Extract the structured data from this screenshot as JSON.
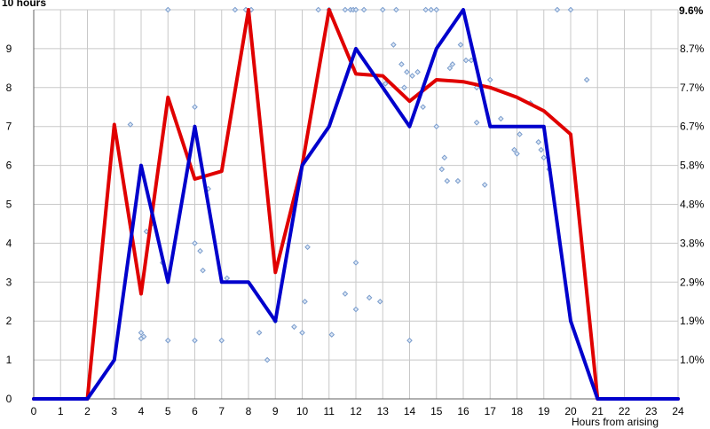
{
  "chart_data": {
    "type": "line",
    "left_axis_title": "10 hours",
    "right_axis_title": "9.6%",
    "xlabel": "Hours from arising",
    "xlim": [
      0,
      24
    ],
    "ylim": [
      0,
      10
    ],
    "grid": true,
    "x_ticks": [
      "0",
      "1",
      "2",
      "3",
      "4",
      "5",
      "6",
      "7",
      "8",
      "9",
      "10",
      "11",
      "12",
      "13",
      "14",
      "15",
      "16",
      "17",
      "18",
      "19",
      "20",
      "21",
      "22",
      "23",
      "24"
    ],
    "y_ticks": [
      "0",
      "1",
      "2",
      "3",
      "4",
      "5",
      "6",
      "7",
      "8",
      "9"
    ],
    "right_ticks": [
      {
        "y": 1,
        "label": "1.0%"
      },
      {
        "y": 2,
        "label": "1.9%"
      },
      {
        "y": 3,
        "label": "2.9%"
      },
      {
        "y": 4,
        "label": "3.8%"
      },
      {
        "y": 5,
        "label": "4.8%"
      },
      {
        "y": 6,
        "label": "5.8%"
      },
      {
        "y": 7,
        "label": "6.7%"
      },
      {
        "y": 8,
        "label": "7.7%"
      },
      {
        "y": 9,
        "label": "8.7%"
      }
    ],
    "colors": {
      "red": "#e00000",
      "blue": "#0000cc",
      "dots": "#7a9ccc",
      "grid": "#c8c8c8"
    },
    "series": [
      {
        "color": "#e00000",
        "points": [
          [
            0,
            0
          ],
          [
            1,
            0
          ],
          [
            2,
            0
          ],
          [
            3,
            7.05
          ],
          [
            4,
            2.7
          ],
          [
            5,
            7.75
          ],
          [
            6,
            5.65
          ],
          [
            7,
            5.85
          ],
          [
            8,
            10
          ],
          [
            9,
            3.25
          ],
          [
            10,
            6
          ],
          [
            11,
            10
          ],
          [
            12,
            8.35
          ],
          [
            13,
            8.3
          ],
          [
            14,
            7.65
          ],
          [
            15,
            8.2
          ],
          [
            16,
            8.15
          ],
          [
            17,
            8
          ],
          [
            18,
            7.75
          ],
          [
            19,
            7.4
          ],
          [
            20,
            6.8
          ],
          [
            21,
            0
          ],
          [
            22,
            0
          ],
          [
            23,
            0
          ],
          [
            24,
            0
          ]
        ]
      },
      {
        "color": "#0000cc",
        "points": [
          [
            0,
            0
          ],
          [
            1,
            0
          ],
          [
            2,
            0
          ],
          [
            3,
            1
          ],
          [
            4,
            6
          ],
          [
            5,
            3
          ],
          [
            6,
            7
          ],
          [
            7,
            3
          ],
          [
            8,
            3
          ],
          [
            9,
            2
          ],
          [
            10,
            6
          ],
          [
            11,
            7
          ],
          [
            12,
            9
          ],
          [
            13,
            8
          ],
          [
            14,
            7
          ],
          [
            15,
            9
          ],
          [
            16,
            10
          ],
          [
            17,
            7
          ],
          [
            18,
            7
          ],
          [
            19,
            7
          ],
          [
            20,
            2
          ],
          [
            21,
            0
          ],
          [
            22,
            0
          ],
          [
            23,
            0
          ],
          [
            24,
            0
          ]
        ]
      }
    ],
    "scatter": [
      [
        3.6,
        7.05
      ],
      [
        4,
        1.7
      ],
      [
        4,
        1.55
      ],
      [
        4.1,
        1.6
      ],
      [
        4.2,
        4.3
      ],
      [
        4.4,
        4.5
      ],
      [
        4.8,
        3.5
      ],
      [
        5,
        1.5
      ],
      [
        5,
        10
      ],
      [
        6,
        1.5
      ],
      [
        6,
        4
      ],
      [
        6,
        7.5
      ],
      [
        6.2,
        3.8
      ],
      [
        6.3,
        3.3
      ],
      [
        6.5,
        5.4
      ],
      [
        7,
        1.5
      ],
      [
        7.2,
        3.1
      ],
      [
        7.5,
        10
      ],
      [
        7.9,
        10
      ],
      [
        8.1,
        10
      ],
      [
        8.4,
        1.7
      ],
      [
        8.7,
        1
      ],
      [
        9,
        2
      ],
      [
        9.7,
        1.85
      ],
      [
        10,
        1.7
      ],
      [
        10.1,
        2.5
      ],
      [
        10.2,
        3.9
      ],
      [
        10.6,
        10
      ],
      [
        11,
        10
      ],
      [
        11.1,
        1.65
      ],
      [
        11.6,
        10
      ],
      [
        11.6,
        2.7
      ],
      [
        11.8,
        10
      ],
      [
        11.9,
        10
      ],
      [
        12,
        10
      ],
      [
        12,
        3.5
      ],
      [
        12,
        2.3
      ],
      [
        12.3,
        10
      ],
      [
        12.5,
        2.6
      ],
      [
        12.9,
        2.5
      ],
      [
        13,
        10
      ],
      [
        13.1,
        8.1
      ],
      [
        13.4,
        9.1
      ],
      [
        13.5,
        10
      ],
      [
        13.7,
        8.6
      ],
      [
        13.8,
        8
      ],
      [
        13.9,
        8.4
      ],
      [
        14,
        1.5
      ],
      [
        14.1,
        8.3
      ],
      [
        14.3,
        8.4
      ],
      [
        14.5,
        7.5
      ],
      [
        14.6,
        10
      ],
      [
        14.8,
        10
      ],
      [
        15,
        10
      ],
      [
        15,
        7
      ],
      [
        15.2,
        5.9
      ],
      [
        15.3,
        6.2
      ],
      [
        15.4,
        5.6
      ],
      [
        15.5,
        8.5
      ],
      [
        15.6,
        8.6
      ],
      [
        15.8,
        5.6
      ],
      [
        15.9,
        9.1
      ],
      [
        16.1,
        8.7
      ],
      [
        16.3,
        8.7
      ],
      [
        16.5,
        8
      ],
      [
        16.5,
        7.1
      ],
      [
        16.8,
        5.5
      ],
      [
        17,
        8.2
      ],
      [
        17.4,
        7.2
      ],
      [
        17.9,
        6.4
      ],
      [
        18,
        6.3
      ],
      [
        18.1,
        6.8
      ],
      [
        18.5,
        7.6
      ],
      [
        18.8,
        6.6
      ],
      [
        18.9,
        6.4
      ],
      [
        19,
        6.2
      ],
      [
        19.2,
        5.9
      ],
      [
        19.5,
        10
      ],
      [
        20,
        10
      ],
      [
        20.6,
        8.2
      ]
    ]
  }
}
